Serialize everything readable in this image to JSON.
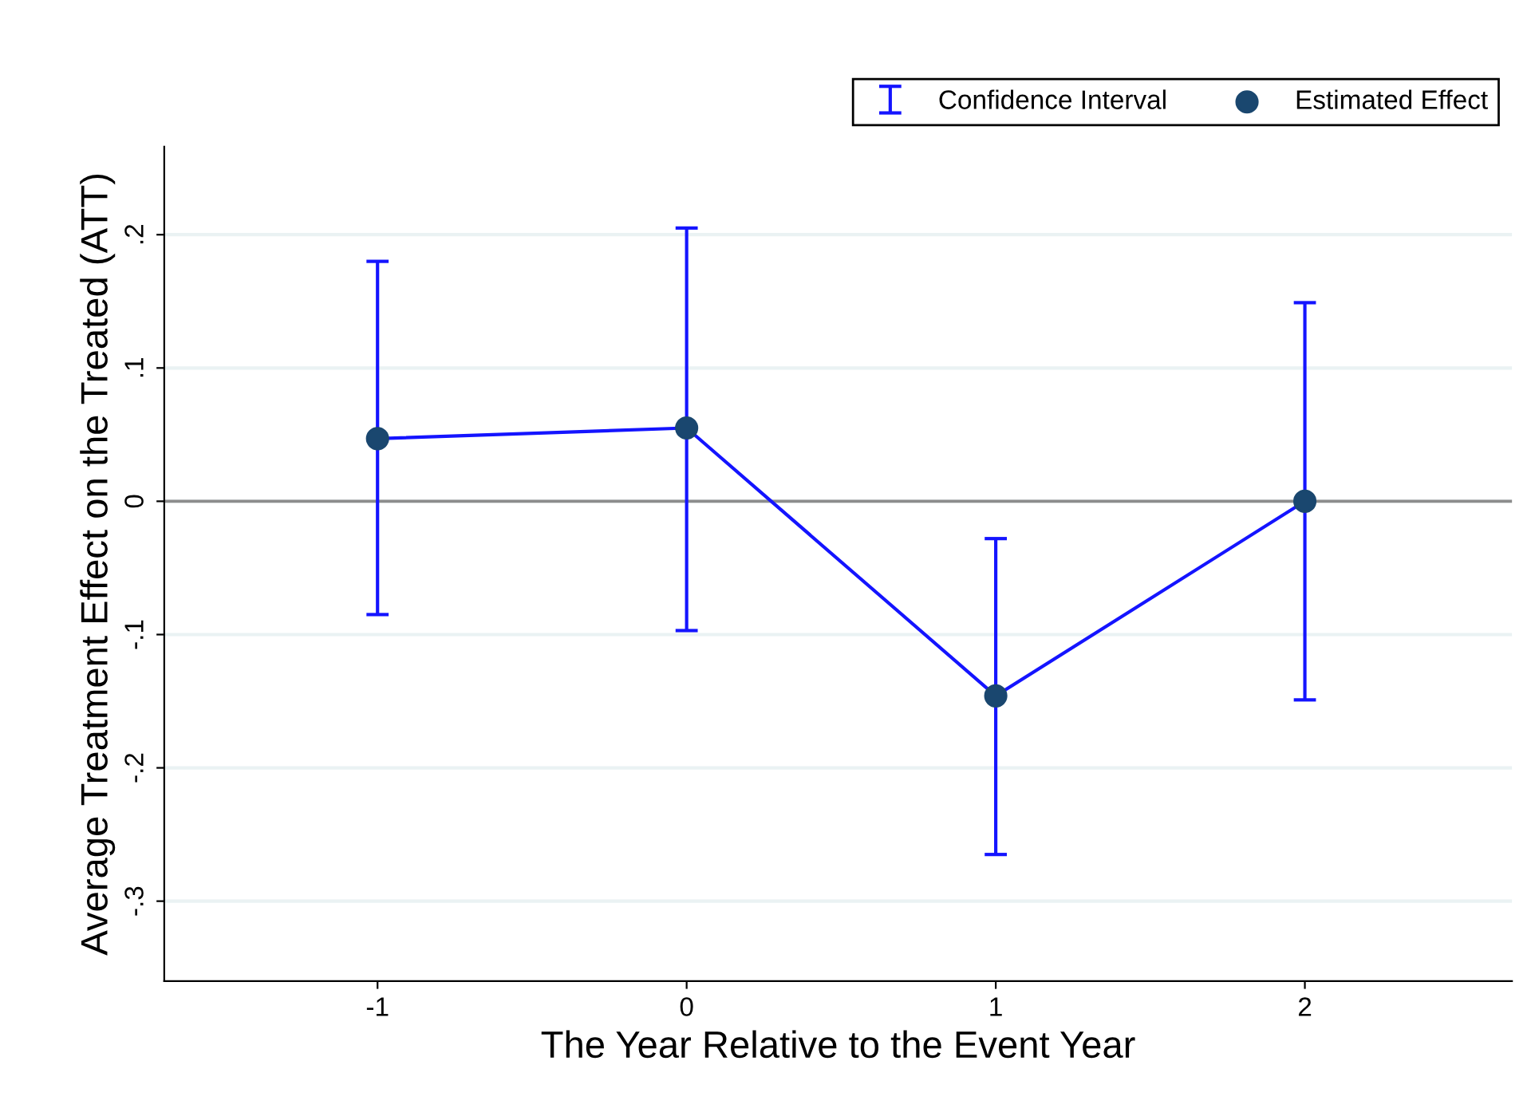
{
  "chart_data": {
    "type": "line",
    "xlabel": "The Year Relative to the Event Year",
    "ylabel": "Average Treatment Effect on the Treated (ATT)",
    "x": [
      -1,
      0,
      1,
      2
    ],
    "series": [
      {
        "name": "Confidence Interval",
        "color": "#1414ff",
        "values": [
          0.047,
          0.055,
          -0.146,
          0.0
        ],
        "errors": [
          [
            -0.085,
            0.18
          ],
          [
            -0.097,
            0.205
          ],
          [
            -0.265,
            -0.028
          ],
          [
            -0.149,
            0.149
          ]
        ]
      },
      {
        "name": "Estimated Effect",
        "type": "scatter",
        "color": "#1a476f",
        "values": [
          0.047,
          0.055,
          -0.146,
          0.0
        ],
        "marker": "circle"
      }
    ],
    "xlim": [
      -1.69,
      2.67
    ],
    "xticks": [
      -1,
      0,
      1,
      2
    ],
    "ylim": [
      -0.36,
      0.266
    ],
    "yticks": [
      {
        "value": -0.3,
        "label": "-.3"
      },
      {
        "value": -0.2,
        "label": "-.2"
      },
      {
        "value": -0.1,
        "label": "-.1"
      },
      0,
      {
        "value": 0.1,
        "label": ".1"
      },
      {
        "value": 0.2,
        "label": ".2"
      }
    ],
    "ref_lines": [
      {
        "axis": "y",
        "value": 0,
        "color": "#8c8c8c"
      }
    ],
    "grid": "y",
    "legend": "top right"
  }
}
